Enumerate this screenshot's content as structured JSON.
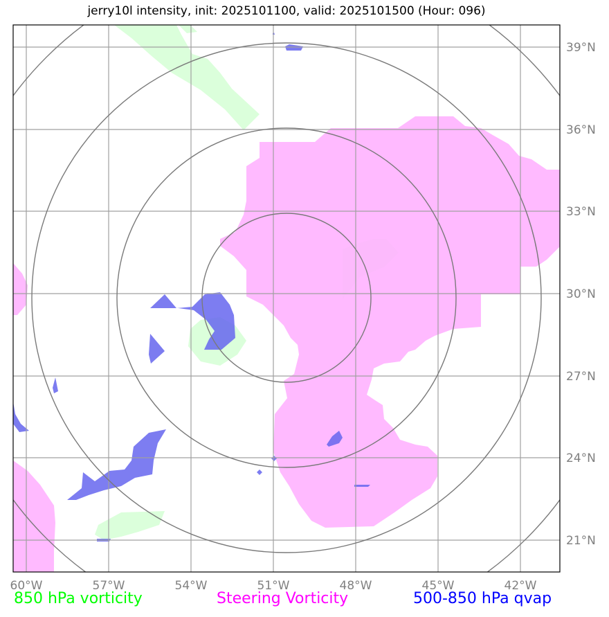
{
  "title": "jerry10l intensity, init: 2025101100, valid: 2025101500 (Hour: 096)",
  "lon_ticks": [
    "60°W",
    "57°W",
    "54°W",
    "51°W",
    "48°W",
    "45°W",
    "42°W"
  ],
  "lat_ticks": [
    "39°N",
    "36°N",
    "33°N",
    "30°N",
    "27°N",
    "24°N",
    "21°N"
  ],
  "legend": [
    {
      "label": "850 hPa vorticity",
      "color": "#00ff00"
    },
    {
      "label": "Steering Vorticity",
      "color": "#ff00ff"
    },
    {
      "label": "500-850 hPa qvap",
      "color": "#0000ff"
    }
  ],
  "fields": {
    "vorticity_850_color": "#ccffcc",
    "steering_vorticity_color": "#ffb3ff",
    "qvap_color": "#6666ee"
  },
  "range_rings": {
    "count": 4,
    "center": "50.5°W, 30.0°N",
    "color": "#808080"
  },
  "grid": true
}
